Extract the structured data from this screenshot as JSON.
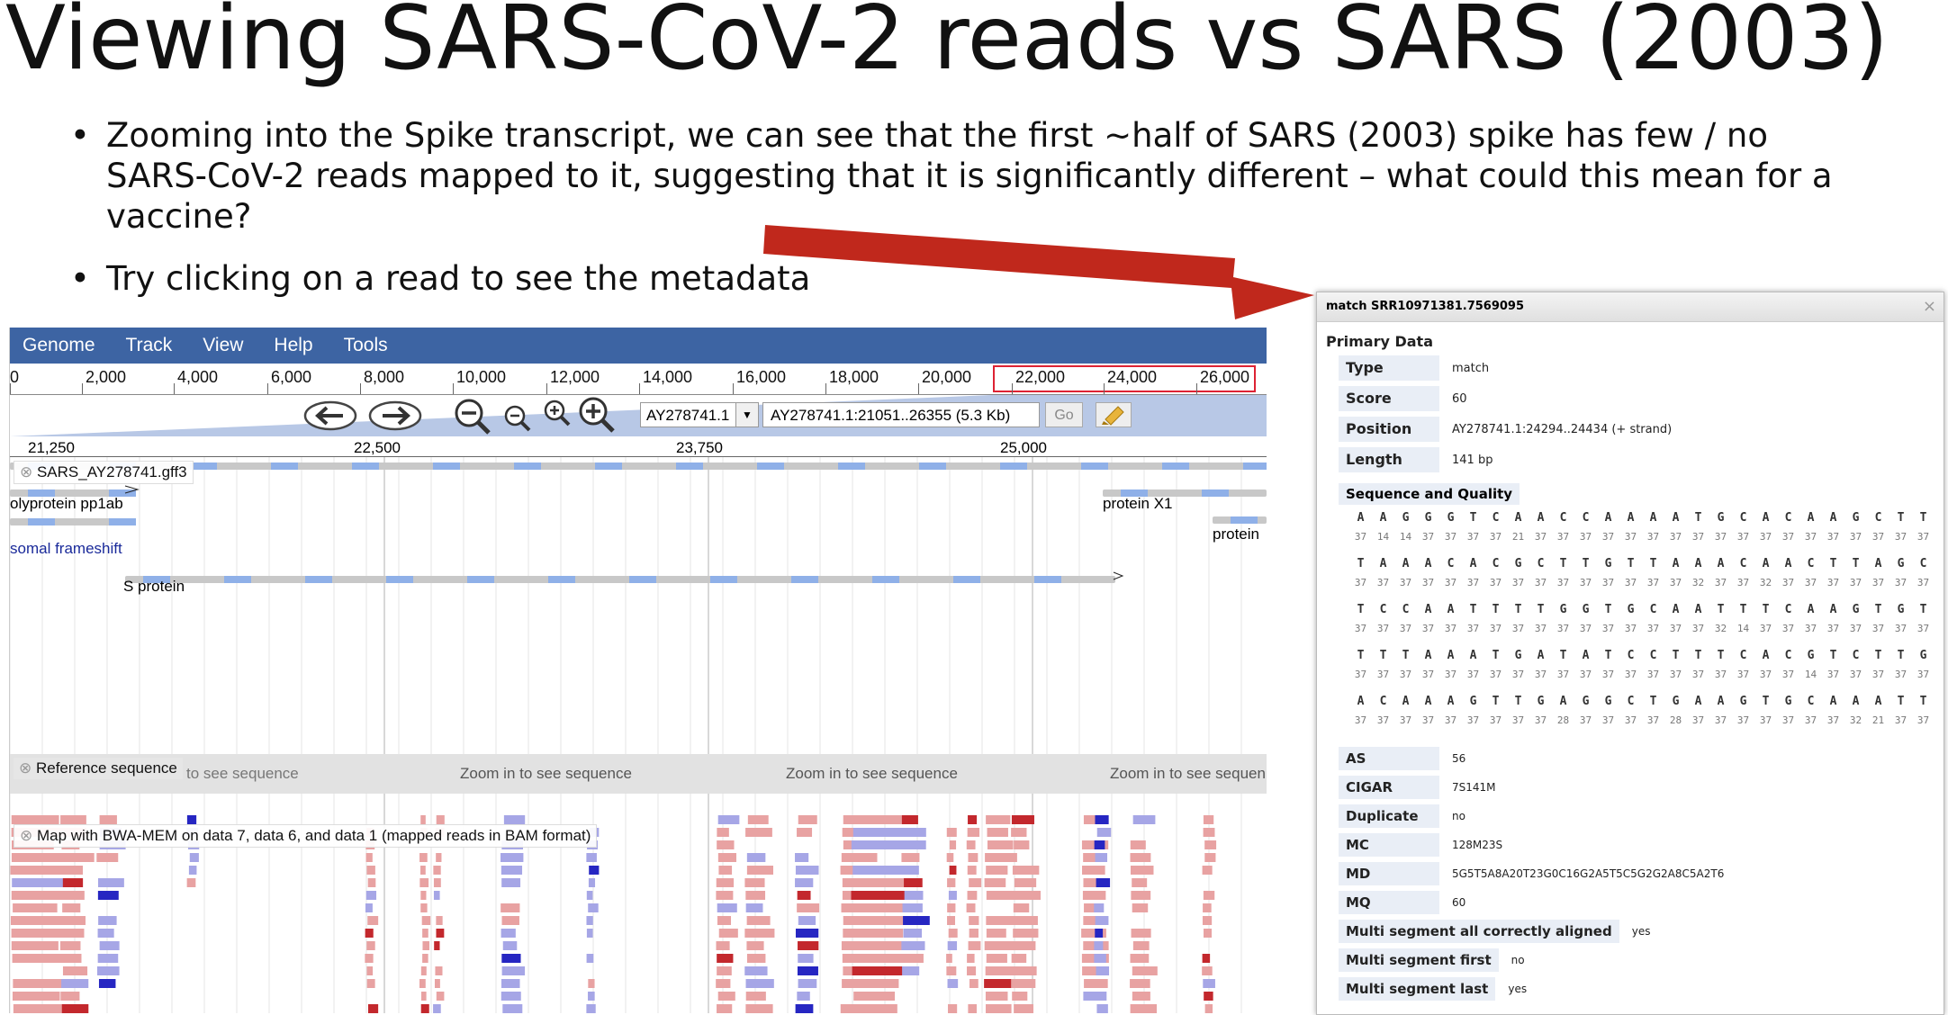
{
  "slide": {
    "title": "Viewing SARS-CoV-2 reads vs SARS (2003)",
    "bullets": [
      "Zooming into the Spike transcript, we can see that the first ~half of SARS (2003) spike has few / no SARS-CoV-2 reads mapped to it, suggesting that it is significantly different – what could this mean for a vaccine?",
      "Try clicking on a read to see the metadata"
    ],
    "arrow_color": "#c0281c"
  },
  "jbrowse": {
    "menu": [
      "Genome",
      "Track",
      "View",
      "Help",
      "Tools"
    ],
    "menu_color": "#3d64a3",
    "ruler_labels": [
      "0",
      "2,000",
      "4,000",
      "6,000",
      "8,000",
      "10,000",
      "12,000",
      "14,000",
      "16,000",
      "18,000",
      "20,000",
      "22,000",
      "24,000",
      "26,000"
    ],
    "refseq_select": "AY278741.1",
    "location": "AY278741.1:21051..26355 (5.3 Kb)",
    "go_label": "Go",
    "scale_labels": [
      "21,250",
      "22,500",
      "23,750",
      "25,000"
    ],
    "tracks": {
      "gff_label": "SARS_AY278741.gff3",
      "features": {
        "polyprotein": "olyprotein pp1ab",
        "frameshift": "somal frameshift",
        "s_protein": "S protein",
        "protein_x1": "protein X1",
        "protein": "protein"
      },
      "ref_label": "Reference sequence",
      "zoom_text": "Zoom in to see sequence",
      "zoom_text_cut": "Zoom in to see sequen",
      "ref_partial": "to see sequence",
      "bam_label": "Map with BWA-MEM on data 7, data 6, and data 1 (mapped reads in BAM format)"
    },
    "read_colors": {
      "forward": "#e8a2a2",
      "reverse": "#a6a6e6",
      "forward_dark": "#c3282d",
      "reverse_dark": "#2626c2"
    }
  },
  "popup": {
    "title": "match SRR10971381.7569095",
    "close": "×",
    "section": "Primary Data",
    "fields": [
      {
        "key": "Type",
        "value": "match"
      },
      {
        "key": "Score",
        "value": "60"
      },
      {
        "key": "Position",
        "value": "AY278741.1:24294..24434 (+ strand)"
      },
      {
        "key": "Length",
        "value": "141 bp"
      }
    ],
    "seq_quality_label": "Sequence and Quality",
    "seq_rows": [
      {
        "nuc": "A A G G G T C A A C C A A A A T G C A C A A G C T T",
        "qual": "37 14 14 37 37 37 37 21 37 37 37 37 37 37 37 37 37 37 37 37 37 37 37 37 37 37"
      },
      {
        "nuc": "T A A A C A C G C T T G T T A A A C A A C T T A G C",
        "qual": "37 37 37 37 37 37 37 37 37 37 37 37 37 37 37 32 37 37 32 37 37 37 37 37 37 37"
      },
      {
        "nuc": "T C C A A T T T T G G T G C A A T T T C A A G T G T",
        "qual": "37 37 37 37 37 37 37 37 37 37 37 37 37 37 37 37 32 14 37 37 37 37 37 37 37 37"
      },
      {
        "nuc": "T T T A A A T G A T A T C C T T T C A C G T C T T G",
        "qual": "37 37 37 37 37 37 37 37 37 37 37 37 37 37 37 37 37 37 37 37 14 37 37 37 37 37"
      },
      {
        "nuc": "A C A A A G T T G A G G C T G A A G T G C A A A T T",
        "qual": "37 37 37 37 37 37 37 37 37 28 37 37 37 37 28 37 37 37 37 37 37 37 32 21 37 37"
      }
    ],
    "tags": [
      {
        "key": "AS",
        "value": "56"
      },
      {
        "key": "CIGAR",
        "value": "7S141M"
      },
      {
        "key": "Duplicate",
        "value": "no"
      },
      {
        "key": "MC",
        "value": "128M23S"
      },
      {
        "key": "MD",
        "value": "5G5T5A8A20T23G0C16G2A5T5C5G2G2A8C5A2T6"
      },
      {
        "key": "MQ",
        "value": "60"
      },
      {
        "key": "Multi segment all correctly aligned",
        "value": "yes"
      },
      {
        "key": "Multi segment first",
        "value": "no"
      },
      {
        "key": "Multi segment last",
        "value": "yes"
      }
    ]
  }
}
